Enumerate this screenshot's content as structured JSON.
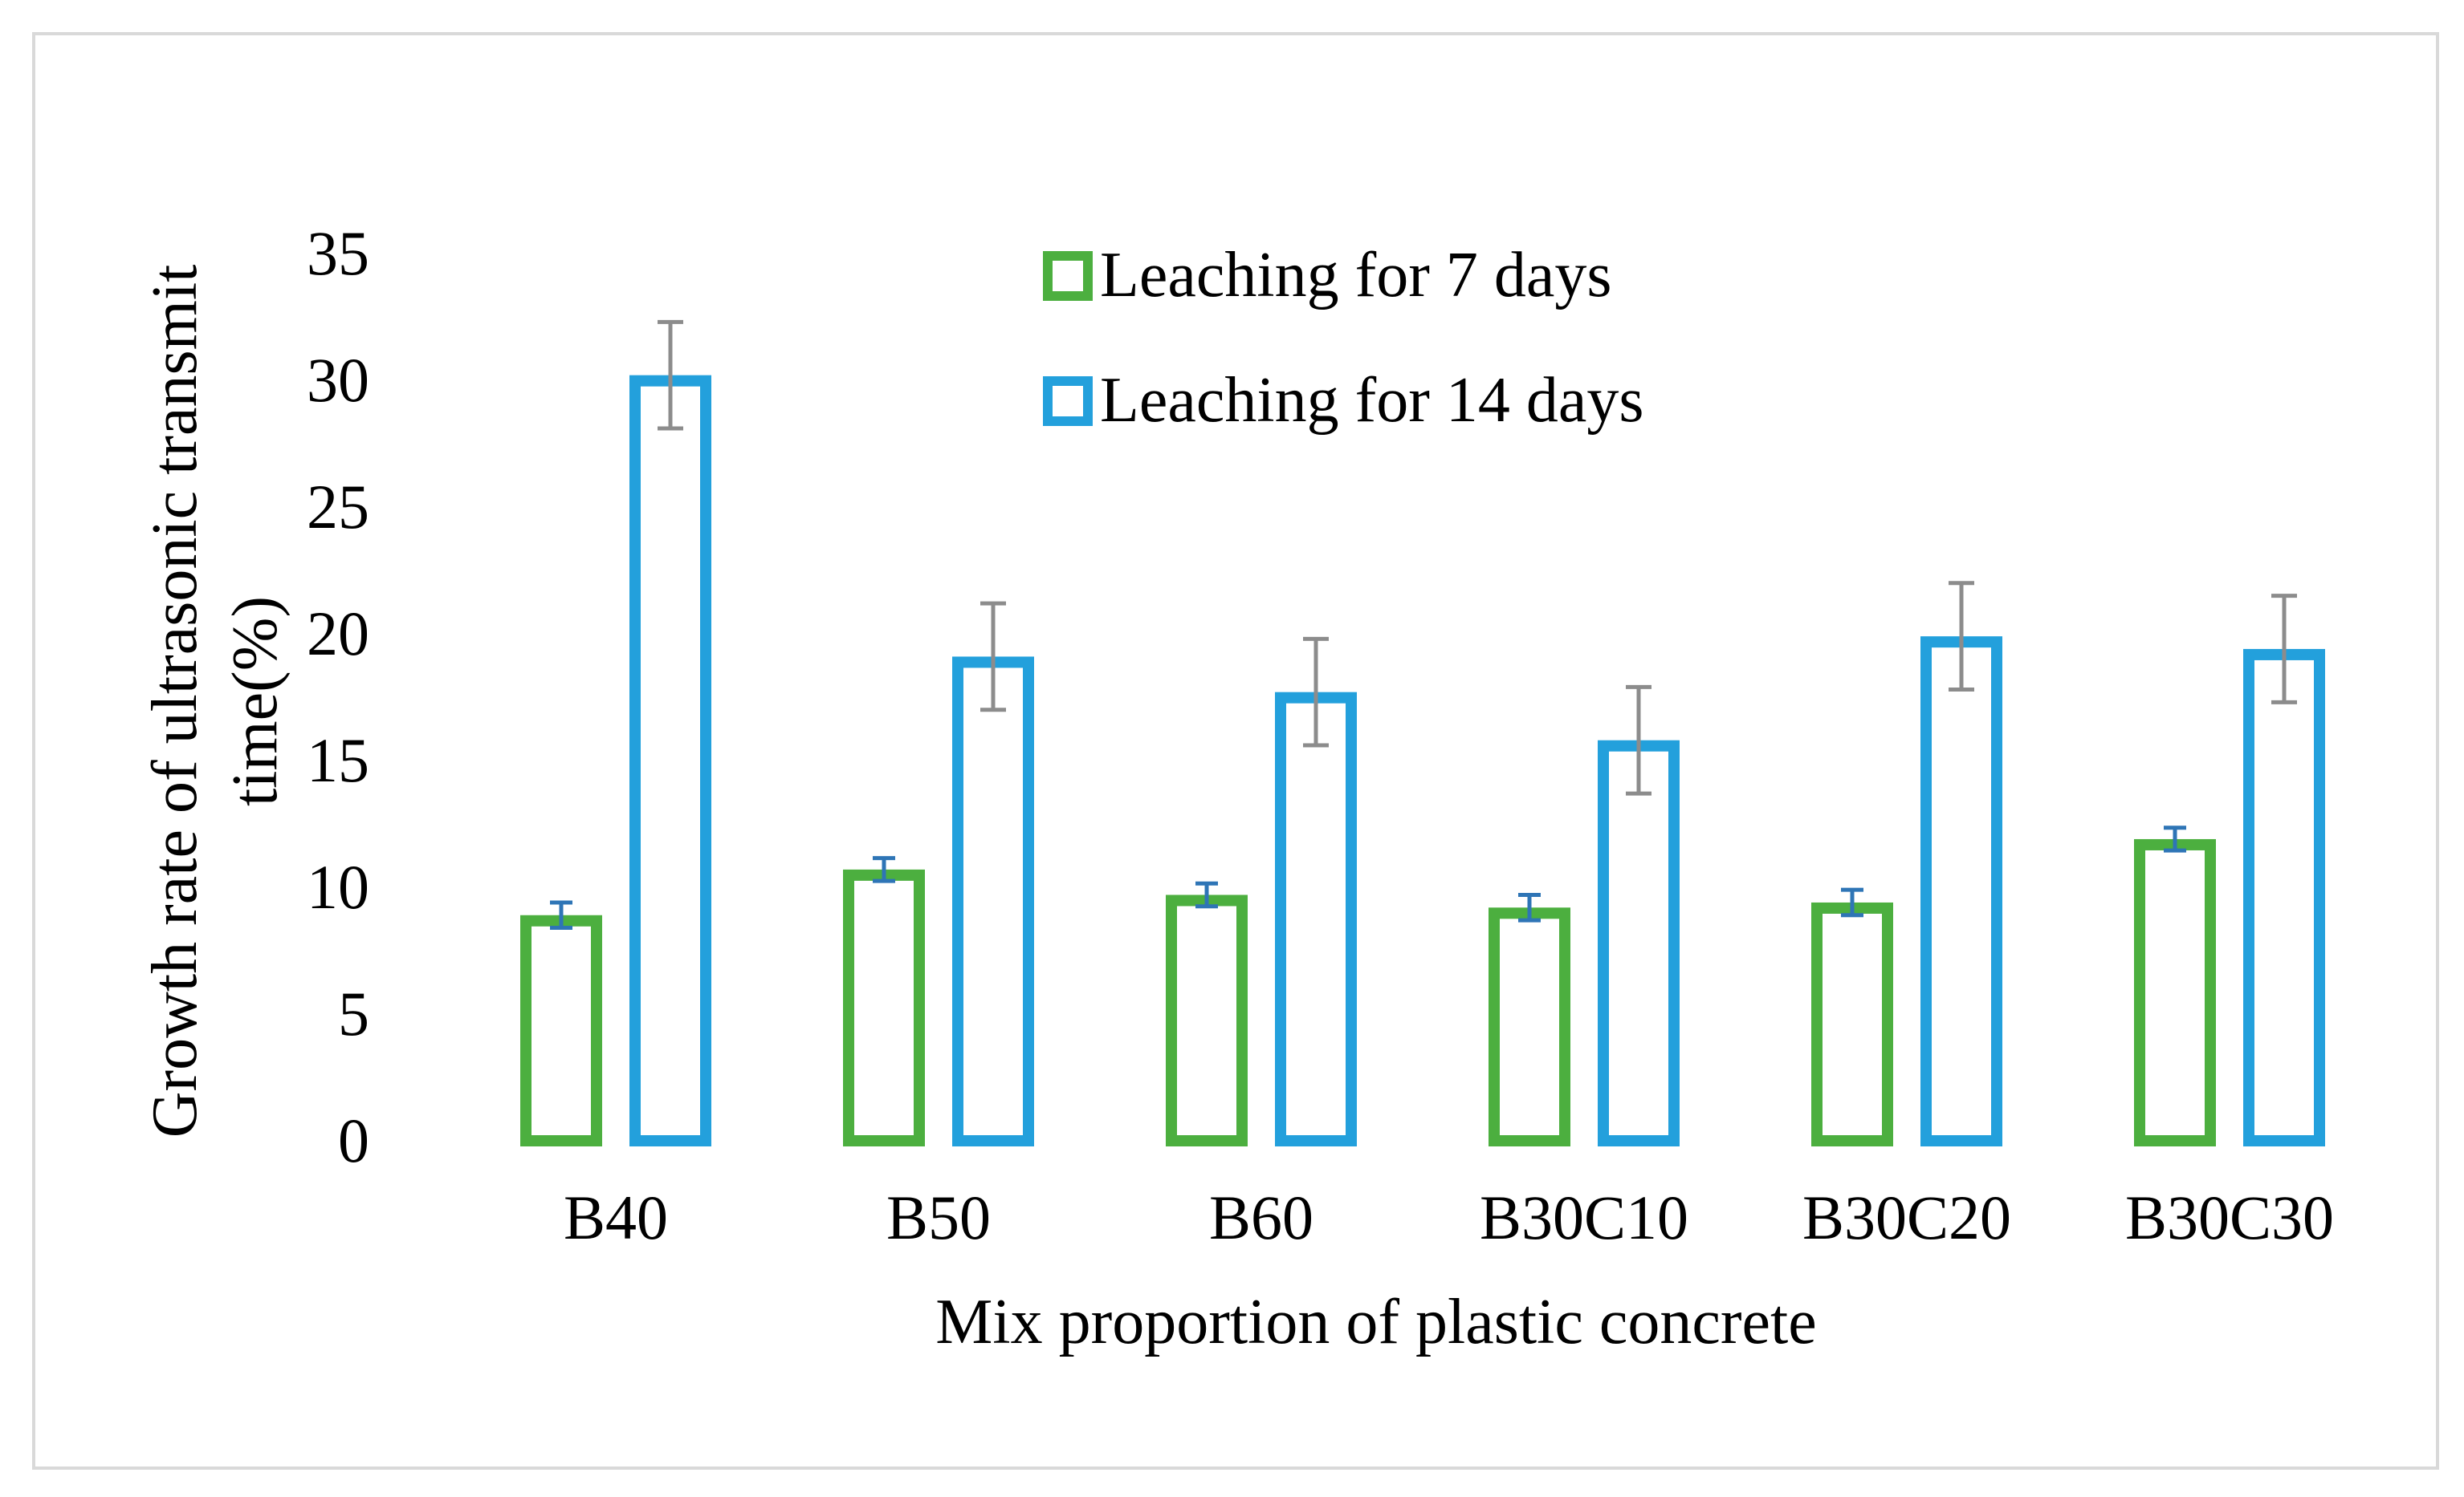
{
  "chart_data": {
    "type": "bar",
    "title": "",
    "xlabel": "Mix proportion of plastic concrete",
    "ylabel_lines": [
      "Growth rate of ultrasonic transmit",
      "time(%)"
    ],
    "ylim": [
      0,
      35
    ],
    "yticks": [
      0,
      5,
      10,
      15,
      20,
      25,
      30,
      35
    ],
    "categories": [
      "B40",
      "B50",
      "B60",
      "B30C10",
      "B30C20",
      "B30C30"
    ],
    "series": [
      {
        "name": "Leaching for 7 days",
        "color": "#4caf3f",
        "error_color": "#2e75b6",
        "values": [
          8.9,
          10.7,
          9.7,
          9.2,
          9.4,
          11.9
        ],
        "errors": [
          0.5,
          0.45,
          0.45,
          0.5,
          0.5,
          0.45
        ]
      },
      {
        "name": "Leaching for 14 days",
        "color": "#23a0dc",
        "error_color": "#8c8c8c",
        "values": [
          30.2,
          19.1,
          17.7,
          15.8,
          19.9,
          19.4
        ],
        "errors": [
          2.1,
          2.1,
          2.1,
          2.1,
          2.1,
          2.1
        ]
      }
    ],
    "legend": {
      "position": "top-center",
      "labels": [
        "Leaching for 7 days",
        "Leaching for 14 days"
      ]
    },
    "grid": false
  }
}
